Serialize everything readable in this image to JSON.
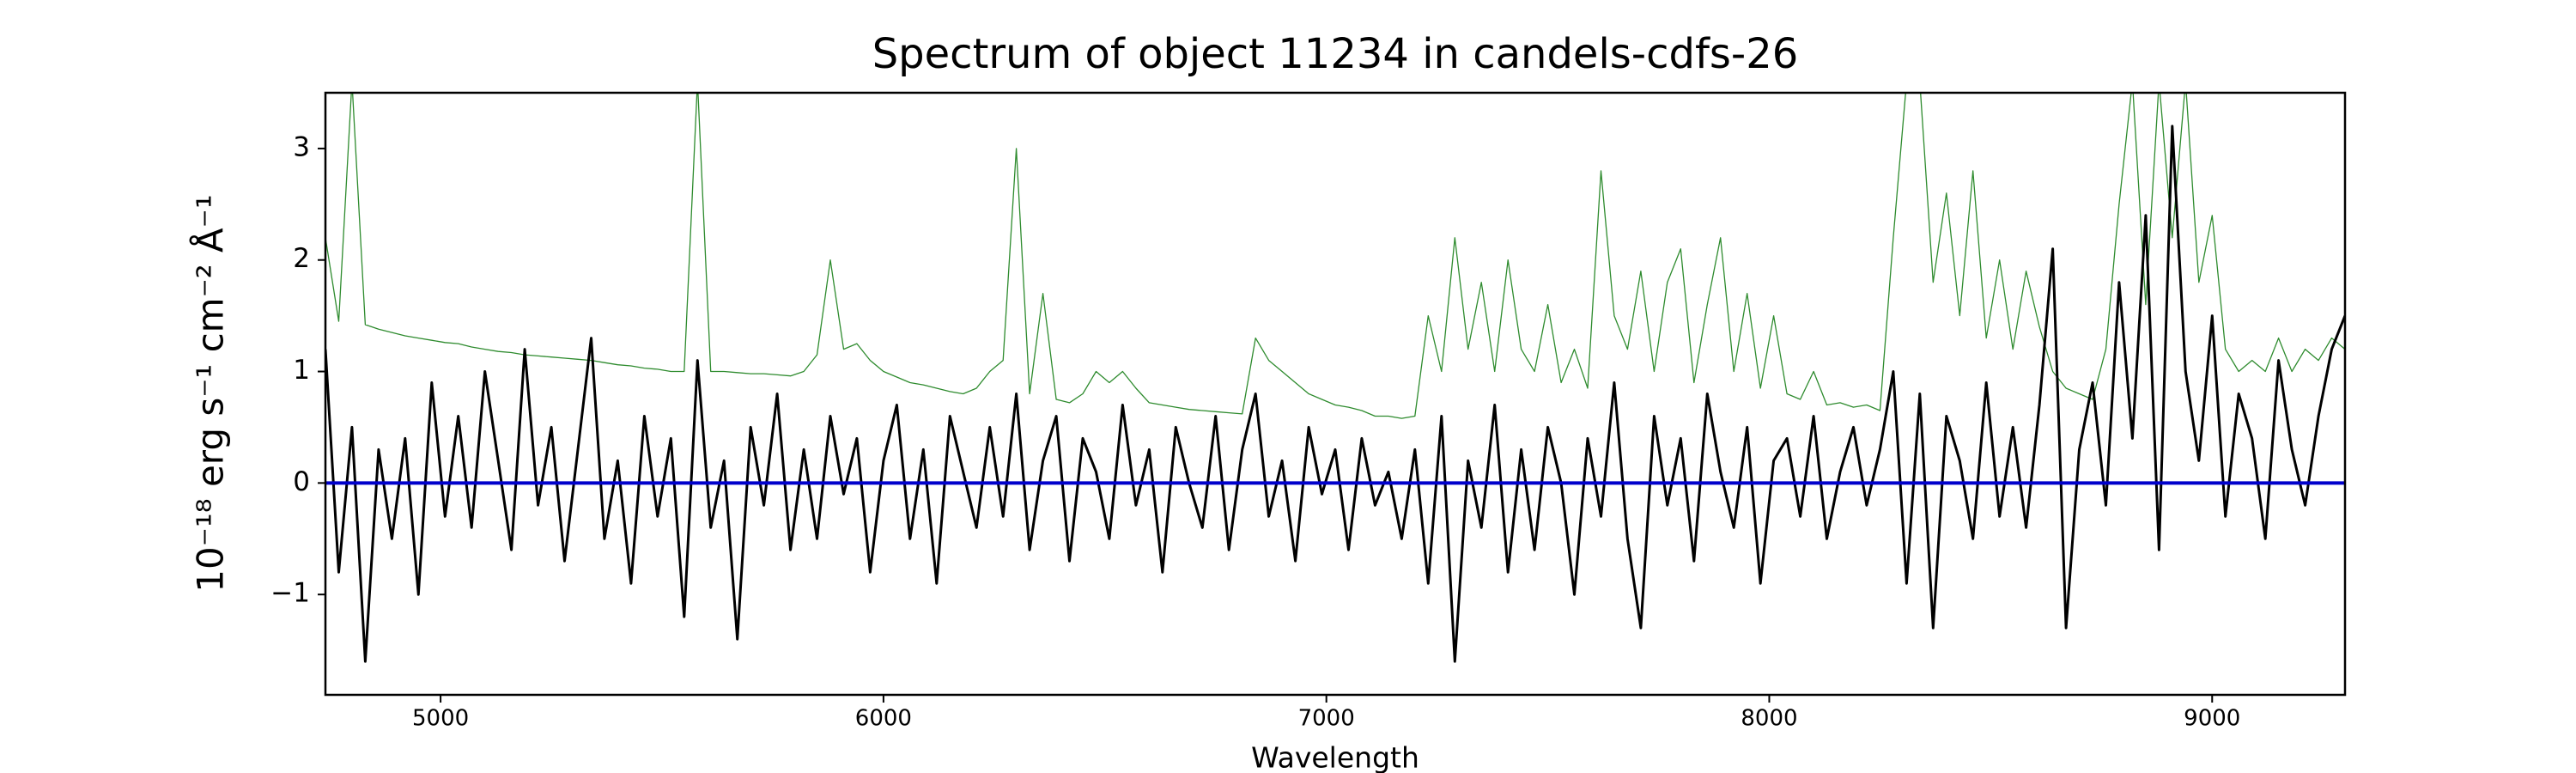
{
  "chart_data": {
    "type": "line",
    "title": "Spectrum of object 11234 in candels-cdfs-26",
    "xlabel": "Wavelength",
    "ylabel": "10⁻¹⁸ erg s⁻¹ cm⁻² Å⁻¹",
    "xlim": [
      4740,
      9300
    ],
    "ylim": [
      -1.9,
      3.5
    ],
    "xticks": [
      5000,
      6000,
      7000,
      8000,
      9000
    ],
    "yticks": [
      {
        "value": -1,
        "label": "−1"
      },
      0,
      1,
      2,
      3
    ],
    "x": [
      4740,
      4770,
      4800,
      4830,
      4860,
      4890,
      4920,
      4950,
      4980,
      5010,
      5040,
      5070,
      5100,
      5130,
      5160,
      5190,
      5220,
      5250,
      5280,
      5310,
      5340,
      5370,
      5400,
      5430,
      5460,
      5490,
      5520,
      5550,
      5580,
      5610,
      5640,
      5670,
      5700,
      5730,
      5760,
      5790,
      5820,
      5850,
      5880,
      5910,
      5940,
      5970,
      6000,
      6030,
      6060,
      6090,
      6120,
      6150,
      6180,
      6210,
      6240,
      6270,
      6300,
      6330,
      6360,
      6390,
      6420,
      6450,
      6480,
      6510,
      6540,
      6570,
      6600,
      6630,
      6660,
      6690,
      6720,
      6750,
      6780,
      6810,
      6840,
      6870,
      6900,
      6930,
      6960,
      6990,
      7020,
      7050,
      7080,
      7110,
      7140,
      7170,
      7200,
      7230,
      7260,
      7290,
      7320,
      7350,
      7380,
      7410,
      7440,
      7470,
      7500,
      7530,
      7560,
      7590,
      7620,
      7650,
      7680,
      7710,
      7740,
      7770,
      7800,
      7830,
      7860,
      7890,
      7920,
      7950,
      7980,
      8010,
      8040,
      8070,
      8100,
      8130,
      8160,
      8190,
      8220,
      8250,
      8280,
      8310,
      8340,
      8370,
      8400,
      8430,
      8460,
      8490,
      8520,
      8550,
      8580,
      8610,
      8640,
      8670,
      8700,
      8730,
      8760,
      8790,
      8820,
      8850,
      8880,
      8910,
      8940,
      8970,
      9000,
      9030,
      9060,
      9090,
      9120,
      9150,
      9180,
      9210,
      9240,
      9270,
      9300
    ],
    "series": [
      {
        "color": "#2e8b2e",
        "values": [
          2.2,
          1.45,
          3.6,
          1.42,
          1.38,
          1.35,
          1.32,
          1.3,
          1.28,
          1.26,
          1.25,
          1.22,
          1.2,
          1.18,
          1.17,
          1.15,
          1.14,
          1.13,
          1.12,
          1.11,
          1.1,
          1.08,
          1.06,
          1.05,
          1.03,
          1.02,
          1.0,
          1.0,
          3.6,
          1.0,
          1.0,
          0.99,
          0.98,
          0.98,
          0.97,
          0.96,
          1.0,
          1.15,
          2.0,
          1.2,
          1.25,
          1.1,
          1.0,
          0.95,
          0.9,
          0.88,
          0.85,
          0.82,
          0.8,
          0.85,
          1.0,
          1.1,
          3.0,
          0.8,
          1.7,
          0.75,
          0.72,
          0.8,
          1.0,
          0.9,
          1.0,
          0.85,
          0.72,
          0.7,
          0.68,
          0.66,
          0.65,
          0.64,
          0.63,
          0.62,
          1.3,
          1.1,
          1.0,
          0.9,
          0.8,
          0.75,
          0.7,
          0.68,
          0.65,
          0.6,
          0.6,
          0.58,
          0.6,
          1.5,
          1.0,
          2.2,
          1.2,
          1.8,
          1.0,
          2.0,
          1.2,
          1.0,
          1.6,
          0.9,
          1.2,
          0.85,
          2.8,
          1.5,
          1.2,
          1.9,
          1.0,
          1.8,
          2.1,
          0.9,
          1.6,
          2.2,
          1.0,
          1.7,
          0.85,
          1.5,
          0.8,
          0.75,
          1.0,
          0.7,
          0.72,
          0.68,
          0.7,
          0.65,
          2.2,
          3.6,
          3.6,
          1.8,
          2.6,
          1.5,
          2.8,
          1.3,
          2.0,
          1.2,
          1.9,
          1.4,
          1.0,
          0.85,
          0.8,
          0.75,
          1.2,
          2.5,
          3.6,
          1.6,
          3.6,
          2.2,
          3.6,
          1.8,
          2.4,
          1.2,
          1.0,
          1.1,
          1.0,
          1.3,
          1.0,
          1.2,
          1.1,
          1.3,
          1.2
        ]
      },
      {
        "color": "#000000",
        "values": [
          1.2,
          -0.8,
          0.5,
          -1.6,
          0.3,
          -0.5,
          0.4,
          -1.0,
          0.9,
          -0.3,
          0.6,
          -0.4,
          1.0,
          0.2,
          -0.6,
          1.2,
          -0.2,
          0.5,
          -0.7,
          0.3,
          1.3,
          -0.5,
          0.2,
          -0.9,
          0.6,
          -0.3,
          0.4,
          -1.2,
          1.1,
          -0.4,
          0.2,
          -1.4,
          0.5,
          -0.2,
          0.8,
          -0.6,
          0.3,
          -0.5,
          0.6,
          -0.1,
          0.4,
          -0.8,
          0.2,
          0.7,
          -0.5,
          0.3,
          -0.9,
          0.6,
          0.1,
          -0.4,
          0.5,
          -0.3,
          0.8,
          -0.6,
          0.2,
          0.6,
          -0.7,
          0.4,
          0.1,
          -0.5,
          0.7,
          -0.2,
          0.3,
          -0.8,
          0.5,
          0.0,
          -0.4,
          0.6,
          -0.6,
          0.3,
          0.8,
          -0.3,
          0.2,
          -0.7,
          0.5,
          -0.1,
          0.3,
          -0.6,
          0.4,
          -0.2,
          0.1,
          -0.5,
          0.3,
          -0.9,
          0.6,
          -1.6,
          0.2,
          -0.4,
          0.7,
          -0.8,
          0.3,
          -0.6,
          0.5,
          0.0,
          -1.0,
          0.4,
          -0.3,
          0.9,
          -0.5,
          -1.3,
          0.6,
          -0.2,
          0.4,
          -0.7,
          0.8,
          0.1,
          -0.4,
          0.5,
          -0.9,
          0.2,
          0.4,
          -0.3,
          0.6,
          -0.5,
          0.1,
          0.5,
          -0.2,
          0.3,
          1.0,
          -0.9,
          0.8,
          -1.3,
          0.6,
          0.2,
          -0.5,
          0.9,
          -0.3,
          0.5,
          -0.4,
          0.7,
          2.1,
          -1.3,
          0.3,
          0.9,
          -0.2,
          1.8,
          0.4,
          2.4,
          -0.6,
          3.2,
          1.0,
          0.2,
          1.5,
          -0.3,
          0.8,
          0.4,
          -0.5,
          1.1,
          0.3,
          -0.2,
          0.6,
          1.2,
          1.5
        ]
      },
      {
        "color": "#0000cc",
        "x": [
          4740,
          9300
        ],
        "values": [
          0,
          0
        ]
      }
    ]
  }
}
